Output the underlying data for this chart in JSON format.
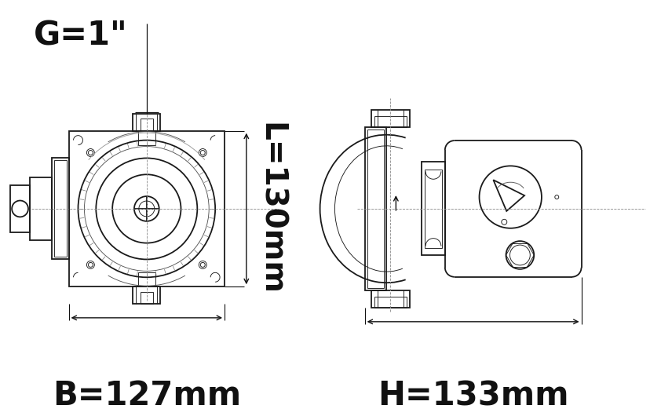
{
  "bg_color": "#ffffff",
  "line_color": "#1a1a1a",
  "dim_color": "#111111",
  "label_G": "G=1\"",
  "label_L": "L=130mm",
  "label_B": "B=127mm",
  "label_H": "H=133mm",
  "label_fontsize": 30,
  "lw_main": 1.3,
  "lw_thin": 0.65,
  "lw_dim": 1.0,
  "lw_dash": 0.6
}
